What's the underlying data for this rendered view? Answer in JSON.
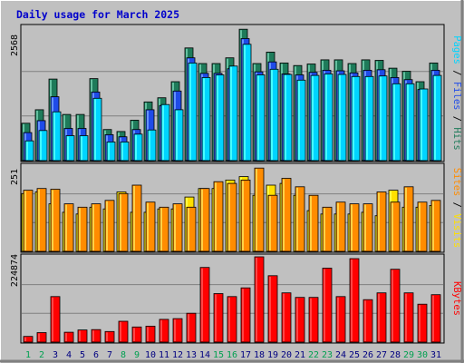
{
  "title": "Daily usage for March 2025",
  "colors": {
    "background": "#C0C0C0",
    "title": "#0000CC",
    "hits": "#1E7B5A",
    "files": "#1F4BE8",
    "pages": "#00D4FF",
    "visits": "#FFE000",
    "sites": "#FF8C00",
    "kbytes": "#FF0000",
    "weekday_label": "#000080",
    "weekend_label": "#00A050"
  },
  "chart_data": [
    {
      "type": "bar",
      "panel": "hits-files-pages",
      "y_max_label": "2568",
      "ylim": [
        0,
        2568
      ],
      "grid": true,
      "right_label": [
        {
          "text": "Pages",
          "color_key": "pages"
        },
        {
          "text": " / ",
          "color_key": "label_sep"
        },
        {
          "text": "Files",
          "color_key": "files"
        },
        {
          "text": " / ",
          "color_key": "label_sep"
        },
        {
          "text": "Hits",
          "color_key": "hits"
        }
      ],
      "categories": [
        "1",
        "2",
        "3",
        "4",
        "5",
        "6",
        "7",
        "8",
        "9",
        "10",
        "11",
        "12",
        "13",
        "14",
        "15",
        "16",
        "17",
        "18",
        "19",
        "20",
        "21",
        "22",
        "23",
        "24",
        "25",
        "26",
        "27",
        "28",
        "29",
        "30",
        "31"
      ],
      "series": [
        {
          "name": "Hits",
          "color_key": "hits",
          "values": [
            720,
            980,
            1570,
            890,
            890,
            1580,
            600,
            560,
            780,
            1130,
            1210,
            1520,
            2170,
            1870,
            1870,
            1980,
            2530,
            1870,
            2090,
            1880,
            1830,
            1860,
            1940,
            1940,
            1870,
            1940,
            1930,
            1780,
            1720,
            1520,
            1880
          ]
        },
        {
          "name": "Files",
          "color_key": "files",
          "values": [
            540,
            770,
            1230,
            620,
            620,
            1320,
            500,
            460,
            600,
            980,
            1060,
            1340,
            1980,
            1680,
            1680,
            1770,
            2350,
            1710,
            1900,
            1670,
            1650,
            1700,
            1740,
            1730,
            1690,
            1740,
            1750,
            1600,
            1560,
            1370,
            1740
          ]
        },
        {
          "name": "Pages",
          "color_key": "pages",
          "values": [
            380,
            580,
            940,
            480,
            480,
            1200,
            360,
            360,
            510,
            590,
            1080,
            980,
            1880,
            1600,
            1650,
            1820,
            2240,
            1650,
            1760,
            1660,
            1550,
            1640,
            1670,
            1660,
            1620,
            1620,
            1630,
            1480,
            1480,
            1380,
            1640
          ]
        }
      ]
    },
    {
      "type": "bar",
      "panel": "sites-visits",
      "y_max_label": "251",
      "ylim": [
        0,
        251
      ],
      "grid": true,
      "right_label": [
        {
          "text": "Sites",
          "color_key": "sites"
        },
        {
          "text": " / ",
          "color_key": "label_sep"
        },
        {
          "text": "Visits",
          "color_key": "visits"
        }
      ],
      "categories": [
        "1",
        "2",
        "3",
        "4",
        "5",
        "6",
        "7",
        "8",
        "9",
        "10",
        "11",
        "12",
        "13",
        "14",
        "15",
        "16",
        "17",
        "18",
        "19",
        "20",
        "21",
        "22",
        "23",
        "24",
        "25",
        "26",
        "27",
        "28",
        "29",
        "30",
        "31"
      ],
      "series": [
        {
          "name": "Visits",
          "color_key": "visits",
          "values": [
            170,
            175,
            140,
            115,
            110,
            130,
            125,
            175,
            115,
            115,
            125,
            125,
            160,
            185,
            185,
            210,
            220,
            165,
            195,
            200,
            165,
            120,
            110,
            110,
            110,
            115,
            105,
            180,
            130,
            130,
            135
          ]
        },
        {
          "name": "Sites",
          "color_key": "sites",
          "values": [
            180,
            185,
            183,
            140,
            130,
            140,
            150,
            170,
            195,
            145,
            130,
            140,
            130,
            185,
            205,
            200,
            210,
            245,
            165,
            215,
            190,
            165,
            130,
            145,
            140,
            140,
            175,
            145,
            190,
            145,
            150
          ]
        }
      ]
    },
    {
      "type": "bar",
      "panel": "kbytes",
      "y_max_label": "224874",
      "ylim": [
        0,
        224874
      ],
      "grid": true,
      "right_label": [
        {
          "text": "KBytes",
          "color_key": "kbytes"
        }
      ],
      "categories": [
        "1",
        "2",
        "3",
        "4",
        "5",
        "6",
        "7",
        "8",
        "9",
        "10",
        "11",
        "12",
        "13",
        "14",
        "15",
        "16",
        "17",
        "18",
        "19",
        "20",
        "21",
        "22",
        "23",
        "24",
        "25",
        "26",
        "27",
        "28",
        "29",
        "30",
        "31"
      ],
      "series": [
        {
          "name": "KBytes",
          "color_key": "kbytes",
          "values": [
            15000,
            25000,
            120000,
            26000,
            32000,
            33000,
            28000,
            55000,
            40000,
            42000,
            60000,
            62000,
            76000,
            197000,
            128000,
            120000,
            143000,
            224874,
            175000,
            130000,
            118000,
            118000,
            195000,
            120000,
            220000,
            112000,
            130000,
            192000,
            130000,
            100000,
            125000
          ]
        }
      ]
    }
  ],
  "x_axis": {
    "days": [
      "1",
      "2",
      "3",
      "4",
      "5",
      "6",
      "7",
      "8",
      "9",
      "10",
      "11",
      "12",
      "13",
      "14",
      "15",
      "16",
      "17",
      "18",
      "19",
      "20",
      "21",
      "22",
      "23",
      "24",
      "25",
      "26",
      "27",
      "28",
      "29",
      "30",
      "31"
    ],
    "weekend_days": [
      "1",
      "2",
      "8",
      "9",
      "15",
      "16",
      "22",
      "23",
      "29",
      "30"
    ]
  }
}
